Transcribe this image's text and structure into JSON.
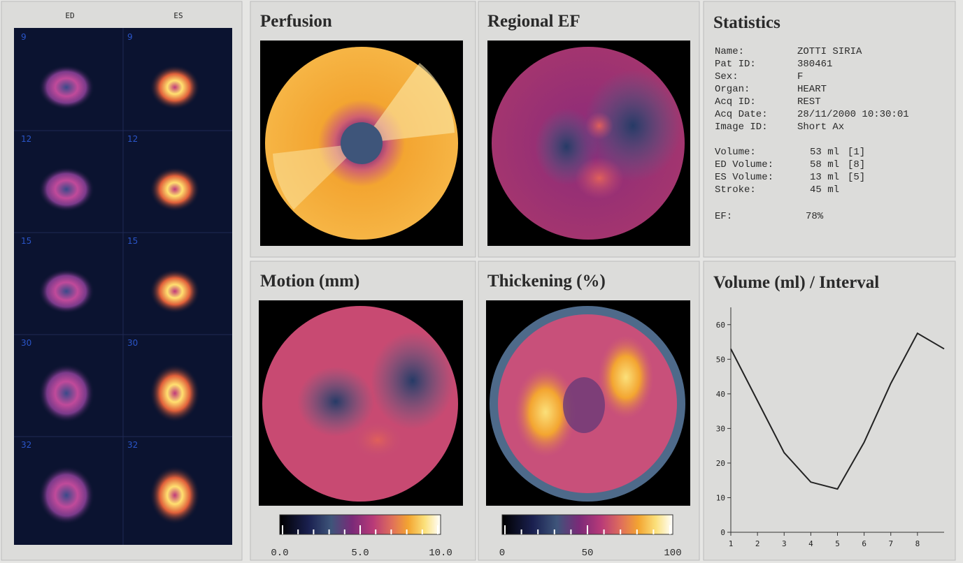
{
  "slices": {
    "headers": [
      "ED",
      "ES"
    ],
    "numbers": [
      "9",
      "12",
      "15",
      "30",
      "32"
    ]
  },
  "maps": [
    {
      "title": "Perfusion"
    },
    {
      "title": "Regional EF"
    },
    {
      "title": "Motion (mm)",
      "scale_labels": [
        "0.0",
        "5.0",
        "10.0"
      ]
    },
    {
      "title": "Thickening (%)",
      "scale_labels": [
        "0",
        "50",
        "100"
      ]
    }
  ],
  "statistics": {
    "title": "Statistics",
    "info": [
      [
        "Name:",
        "ZOTTI SIRIA"
      ],
      [
        "Pat ID:",
        "380461"
      ],
      [
        "Sex:",
        "F"
      ],
      [
        "Organ:",
        "HEART"
      ],
      [
        "Acq ID:",
        "REST"
      ],
      [
        "Acq Date:",
        "28/11/2000 10:30:01"
      ],
      [
        "Image ID:",
        "Short Ax"
      ]
    ],
    "volumes": [
      [
        "Volume:",
        "53 ml",
        "[1]"
      ],
      [
        "ED Volume:",
        "58 ml",
        "[8]"
      ],
      [
        "ES Volume:",
        "13 ml",
        "[5]"
      ],
      [
        "Stroke:",
        "45 ml"
      ]
    ],
    "ef": [
      "EF:",
      "78%"
    ]
  },
  "chart_data": {
    "type": "line",
    "title": "Volume (ml) / Interval",
    "x": [
      1,
      2,
      3,
      4,
      5,
      6,
      7,
      8,
      9
    ],
    "values": [
      53,
      38,
      23,
      14.5,
      12.5,
      26,
      43,
      57.5,
      53
    ],
    "color": "#222222",
    "xlim": [
      1,
      9
    ],
    "ylim": [
      0,
      65
    ],
    "xticks": [
      1,
      2,
      3,
      4,
      5,
      6,
      7,
      8
    ],
    "yticks": [
      0,
      10,
      20,
      30,
      40,
      50,
      60
    ]
  }
}
